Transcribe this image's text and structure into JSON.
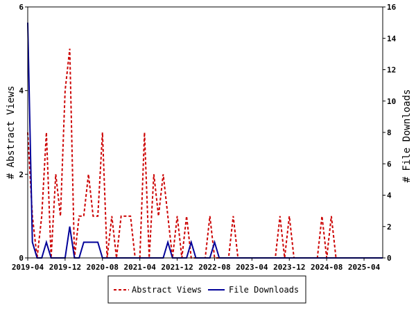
{
  "chart_data": {
    "type": "line",
    "title": "",
    "xlabel": "",
    "ylabel_left": "# Abstract Views",
    "ylabel_right": "# File Downloads",
    "ylim_left": [
      0,
      6
    ],
    "ylim_right": [
      0,
      16
    ],
    "yticks_left": [
      "0",
      "2",
      "4",
      "6"
    ],
    "yticks_right": [
      "0",
      "2",
      "4",
      "6",
      "8",
      "10",
      "12",
      "14",
      "16"
    ],
    "x_start": "2019-04",
    "x_end": "2025-08",
    "x_tick_labels": [
      "2019-04",
      "2019-12",
      "2020-08",
      "2021-04",
      "2021-12",
      "2022-08",
      "2023-04",
      "2023-12",
      "2024-08",
      "2025-04"
    ],
    "legend_position": "bottom",
    "grid": false,
    "colors": {
      "abstract_views": "#cc0000",
      "file_downloads": "#000099"
    },
    "series": [
      {
        "name": "Abstract Views",
        "axis": "left",
        "style": "dashed",
        "color": "#cc0000",
        "x": [
          "2019-04",
          "2019-05",
          "2019-06",
          "2019-07",
          "2019-08",
          "2019-09",
          "2019-10",
          "2019-11",
          "2019-12",
          "2020-01",
          "2020-02",
          "2020-03",
          "2020-04",
          "2020-05",
          "2020-06",
          "2020-07",
          "2020-08",
          "2020-09",
          "2020-10",
          "2020-11",
          "2020-12",
          "2021-01",
          "2021-02",
          "2021-03",
          "2021-04",
          "2021-05",
          "2021-06",
          "2021-07",
          "2021-08",
          "2021-09",
          "2021-10",
          "2021-11",
          "2021-12",
          "2022-01",
          "2022-02",
          "2022-03",
          "2022-04",
          "2022-05",
          "2022-06",
          "2022-07",
          "2022-08",
          "2022-09",
          "2022-10",
          "2022-11",
          "2022-12",
          "2023-01",
          "2023-02",
          "2023-03",
          "2023-04",
          "2023-05",
          "2023-06",
          "2023-07",
          "2023-08",
          "2023-09",
          "2023-10",
          "2023-11",
          "2023-12",
          "2024-01",
          "2024-02",
          "2024-03",
          "2024-04",
          "2024-05",
          "2024-06",
          "2024-07",
          "2024-08",
          "2024-09",
          "2024-10",
          "2024-11",
          "2024-12",
          "2025-01",
          "2025-02",
          "2025-03",
          "2025-04",
          "2025-05",
          "2025-06",
          "2025-07",
          "2025-08"
        ],
        "values": [
          3,
          1,
          0,
          1,
          3,
          0,
          2,
          1,
          4,
          5,
          0,
          1,
          1,
          2,
          1,
          1,
          3,
          0,
          1,
          0,
          1,
          1,
          1,
          0,
          0,
          3,
          0,
          2,
          1,
          2,
          1,
          0,
          1,
          0,
          1,
          0,
          0,
          0,
          0,
          1,
          0,
          0,
          0,
          0,
          1,
          0,
          0,
          0,
          0,
          0,
          0,
          0,
          0,
          0,
          1,
          0,
          1,
          0,
          0,
          0,
          0,
          0,
          0,
          1,
          0,
          1,
          0,
          0,
          0,
          0,
          0,
          0,
          0,
          0,
          0,
          0,
          0
        ]
      },
      {
        "name": "File Downloads",
        "axis": "right",
        "style": "solid",
        "color": "#000099",
        "x": [
          "2019-04",
          "2019-05",
          "2019-06",
          "2019-07",
          "2019-08",
          "2019-09",
          "2019-10",
          "2019-11",
          "2019-12",
          "2020-01",
          "2020-02",
          "2020-03",
          "2020-04",
          "2020-05",
          "2020-06",
          "2020-07",
          "2020-08",
          "2020-09",
          "2020-10",
          "2020-11",
          "2020-12",
          "2021-01",
          "2021-02",
          "2021-03",
          "2021-04",
          "2021-05",
          "2021-06",
          "2021-07",
          "2021-08",
          "2021-09",
          "2021-10",
          "2021-11",
          "2021-12",
          "2022-01",
          "2022-02",
          "2022-03",
          "2022-04",
          "2022-05",
          "2022-06",
          "2022-07",
          "2022-08",
          "2022-09",
          "2022-10",
          "2022-11",
          "2022-12",
          "2023-01",
          "2023-02",
          "2023-03",
          "2023-04",
          "2023-05",
          "2023-06",
          "2023-07",
          "2023-08",
          "2023-09",
          "2023-10",
          "2023-11",
          "2023-12",
          "2024-01",
          "2024-02",
          "2024-03",
          "2024-04",
          "2024-05",
          "2024-06",
          "2024-07",
          "2024-08",
          "2024-09",
          "2024-10",
          "2024-11",
          "2024-12",
          "2025-01",
          "2025-02",
          "2025-03",
          "2025-04",
          "2025-05",
          "2025-06",
          "2025-07",
          "2025-08"
        ],
        "values": [
          15,
          1,
          0,
          0,
          1,
          0,
          0,
          0,
          0,
          2,
          0,
          0,
          1,
          1,
          1,
          1,
          0,
          0,
          0,
          0,
          0,
          0,
          0,
          0,
          0,
          0,
          0,
          0,
          0,
          0,
          1,
          0,
          0,
          0,
          0,
          1,
          0,
          0,
          0,
          0,
          1,
          0,
          0,
          0,
          0,
          0,
          0,
          0,
          0,
          0,
          0,
          0,
          0,
          0,
          0,
          0,
          0,
          0,
          0,
          0,
          0,
          0,
          0,
          0,
          0,
          0,
          0,
          0,
          0,
          0,
          0,
          0,
          0,
          0,
          0,
          0,
          0
        ]
      }
    ]
  }
}
